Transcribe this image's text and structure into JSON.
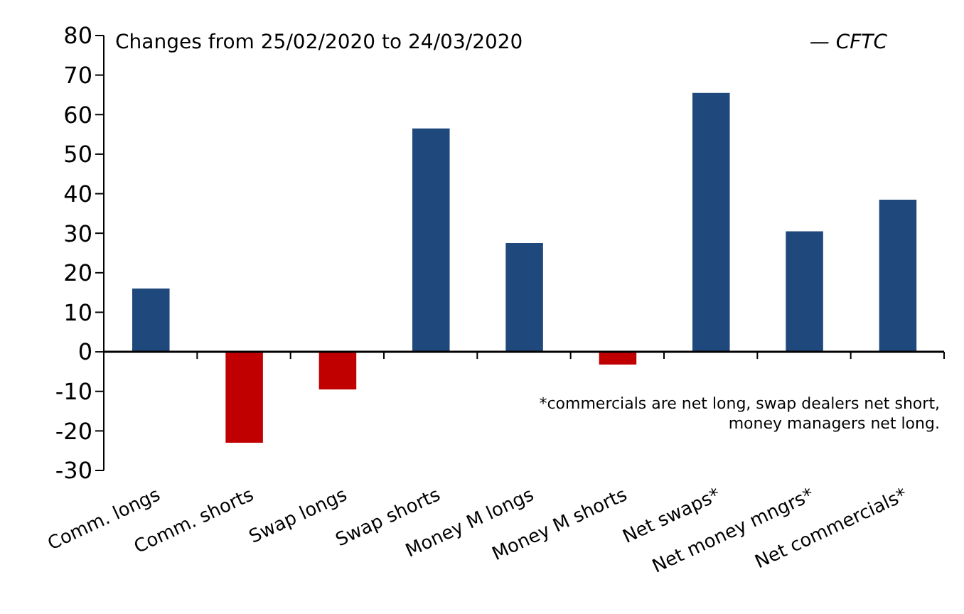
{
  "chart_data": {
    "type": "bar",
    "title": "Changes from 25/02/2020 to 24/03/2020",
    "categories": [
      "Comm. longs",
      "Comm. shorts",
      "Swap longs",
      "Swap shorts",
      "Money M longs",
      "Money M shorts",
      "Net swaps*",
      "Net money mngrs*",
      "Net commercials*"
    ],
    "values": [
      16,
      -23,
      -9.5,
      56.5,
      27.5,
      -3.2,
      65.5,
      30.5,
      38.5
    ],
    "colors": [
      "#1f497d",
      "#c00000",
      "#c00000",
      "#1f497d",
      "#1f497d",
      "#c00000",
      "#1f497d",
      "#1f497d",
      "#1f497d"
    ],
    "ylim": [
      -30,
      80
    ],
    "yticks": [
      -30,
      -20,
      -10,
      0,
      10,
      20,
      30,
      40,
      50,
      60,
      70,
      80
    ],
    "annotations": [
      "— CFTC",
      "*commercials are net long, swap dealers net short,\nmoney managers net long."
    ]
  }
}
